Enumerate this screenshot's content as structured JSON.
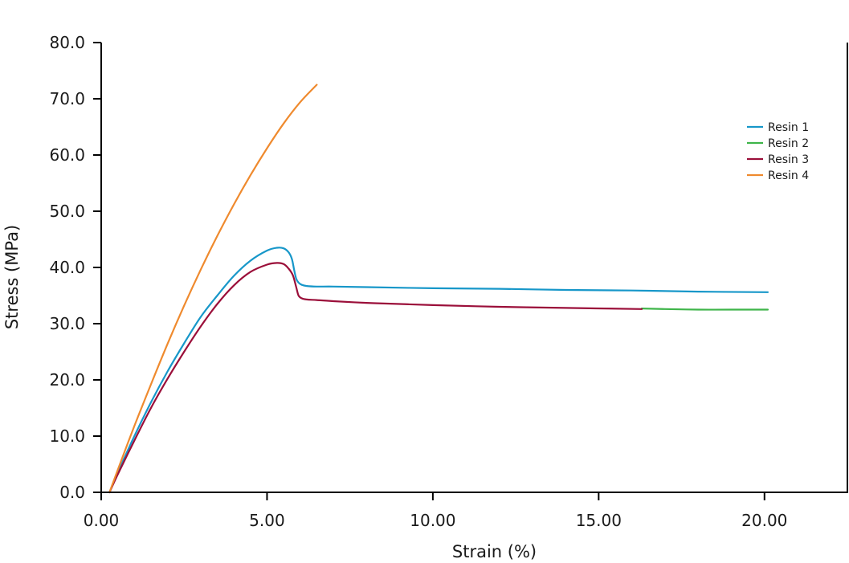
{
  "chart_data": {
    "type": "line",
    "title": "",
    "xlabel": "Strain (%)",
    "ylabel": "Stress (MPa)",
    "xlim": [
      0,
      22.5
    ],
    "ylim": [
      0,
      80
    ],
    "x_ticks": [
      "0.00",
      "5.00",
      "10.00",
      "15.00",
      "20.00"
    ],
    "x_tick_values": [
      0,
      5,
      10,
      15,
      20
    ],
    "y_ticks": [
      "0.0",
      "10.0",
      "20.0",
      "30.0",
      "40.0",
      "50.0",
      "60.0",
      "70.0",
      "80.0"
    ],
    "y_tick_values": [
      0,
      10,
      20,
      30,
      40,
      50,
      60,
      70,
      80
    ],
    "grid": false,
    "legend_position": "top-right",
    "series": [
      {
        "name": "Resin 1",
        "color": "#1797c9",
        "x": [
          0.25,
          0.5,
          1.0,
          1.5,
          2.0,
          2.5,
          3.0,
          3.5,
          4.0,
          4.5,
          5.0,
          5.3,
          5.5,
          5.65,
          5.75,
          5.82,
          5.88,
          5.95,
          6.05,
          6.2,
          6.5,
          7.0,
          8.0,
          10.0,
          12.0,
          14.0,
          16.0,
          18.0,
          20.1
        ],
        "y": [
          0.0,
          3.5,
          10.0,
          16.0,
          21.5,
          26.5,
          31.2,
          35.0,
          38.5,
          41.2,
          43.0,
          43.5,
          43.4,
          42.7,
          41.5,
          39.5,
          38.0,
          37.3,
          36.9,
          36.7,
          36.6,
          36.6,
          36.5,
          36.3,
          36.2,
          36.0,
          35.9,
          35.7,
          35.6
        ]
      },
      {
        "name": "Resin 2",
        "color": "#3fb54a",
        "x": [
          16.3,
          17.0,
          18.0,
          19.0,
          20.1
        ],
        "y": [
          32.7,
          32.6,
          32.5,
          32.5,
          32.5
        ]
      },
      {
        "name": "Resin 3",
        "color": "#9b0f3a",
        "x": [
          0.25,
          0.5,
          1.0,
          1.5,
          2.0,
          2.5,
          3.0,
          3.5,
          4.0,
          4.5,
          5.0,
          5.3,
          5.5,
          5.65,
          5.78,
          5.88,
          5.95,
          6.05,
          6.2,
          6.5,
          7.0,
          8.0,
          9.0,
          10.0,
          12.0,
          14.0,
          16.3
        ],
        "y": [
          0.0,
          3.2,
          9.2,
          15.0,
          20.2,
          25.0,
          29.5,
          33.5,
          36.8,
          39.2,
          40.5,
          40.8,
          40.6,
          39.8,
          38.6,
          36.5,
          35.0,
          34.5,
          34.3,
          34.2,
          34.0,
          33.7,
          33.5,
          33.3,
          33.0,
          32.8,
          32.6
        ]
      },
      {
        "name": "Resin 4",
        "color": "#ef8a2e",
        "x": [
          0.25,
          0.5,
          1.0,
          1.5,
          2.0,
          2.5,
          3.0,
          3.5,
          4.0,
          4.5,
          5.0,
          5.5,
          6.0,
          6.5
        ],
        "y": [
          0.0,
          4.0,
          11.8,
          19.2,
          26.4,
          33.2,
          39.6,
          45.6,
          51.2,
          56.4,
          61.2,
          65.6,
          69.4,
          72.5
        ]
      }
    ]
  }
}
